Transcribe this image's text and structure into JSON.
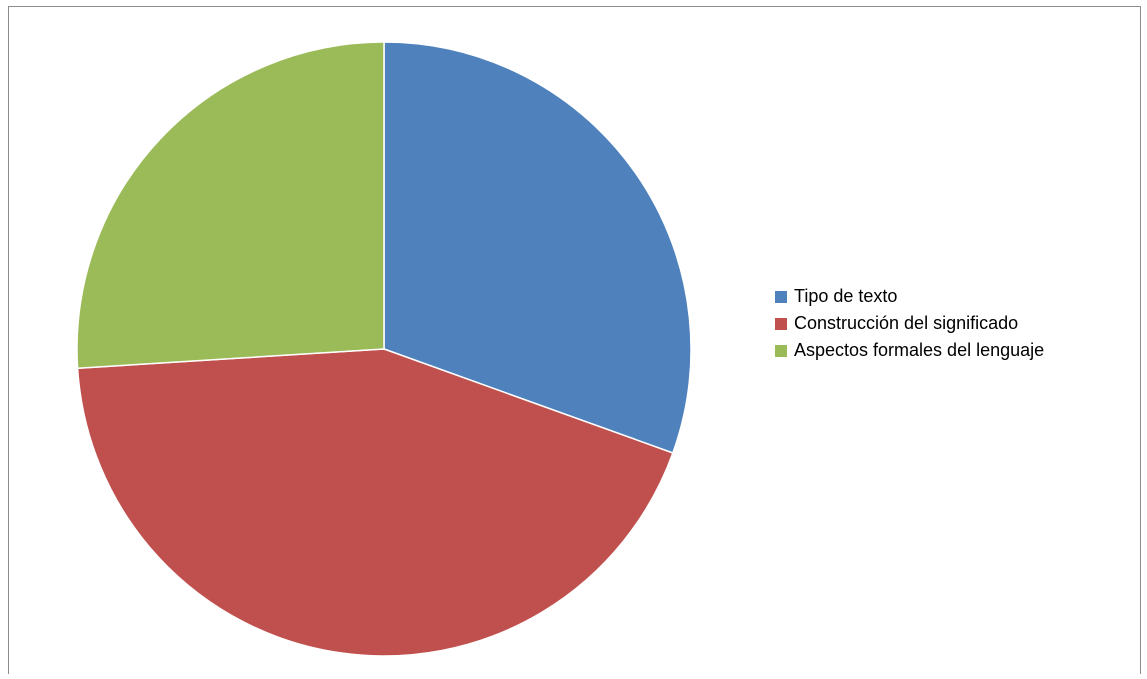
{
  "chart_data": {
    "type": "pie",
    "title": "",
    "start_angle_deg": 0,
    "direction": "clockwise",
    "legend_position": "right",
    "slices": [
      {
        "label": "Tipo de texto",
        "value": 30.5,
        "color": "#4F81BD"
      },
      {
        "label": "Construcción del significado",
        "value": 43.5,
        "color": "#C0504D"
      },
      {
        "label": "Aspectos formales del lenguaje",
        "value": 26.0,
        "color": "#9BBB59"
      }
    ]
  }
}
